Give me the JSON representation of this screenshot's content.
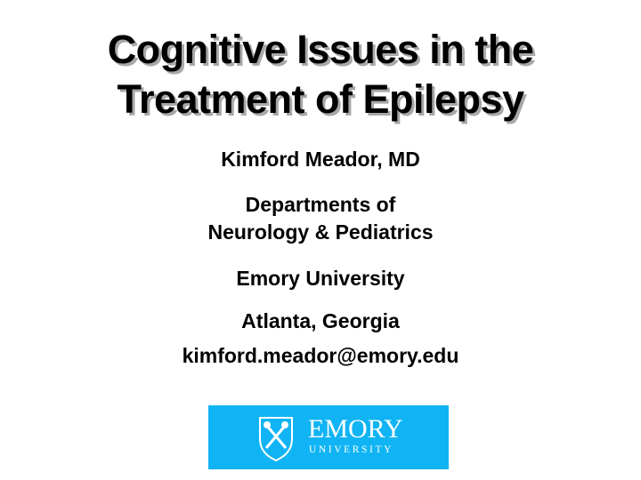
{
  "slide": {
    "title_line1": "Cognitive Issues in the",
    "title_line2": "Treatment of Epilepsy",
    "author": "Kimford Meador, MD",
    "dept_line1": "Departments of",
    "dept_line2": "Neurology & Pediatrics",
    "university": "Emory University",
    "location": "Atlanta, Georgia",
    "email": "kimford.meador@emory.edu"
  },
  "logo": {
    "wordmark": "EMORY",
    "subtext": "UNIVERSITY",
    "icon": "shield-torches-icon",
    "background_color": "#10b4f4"
  }
}
